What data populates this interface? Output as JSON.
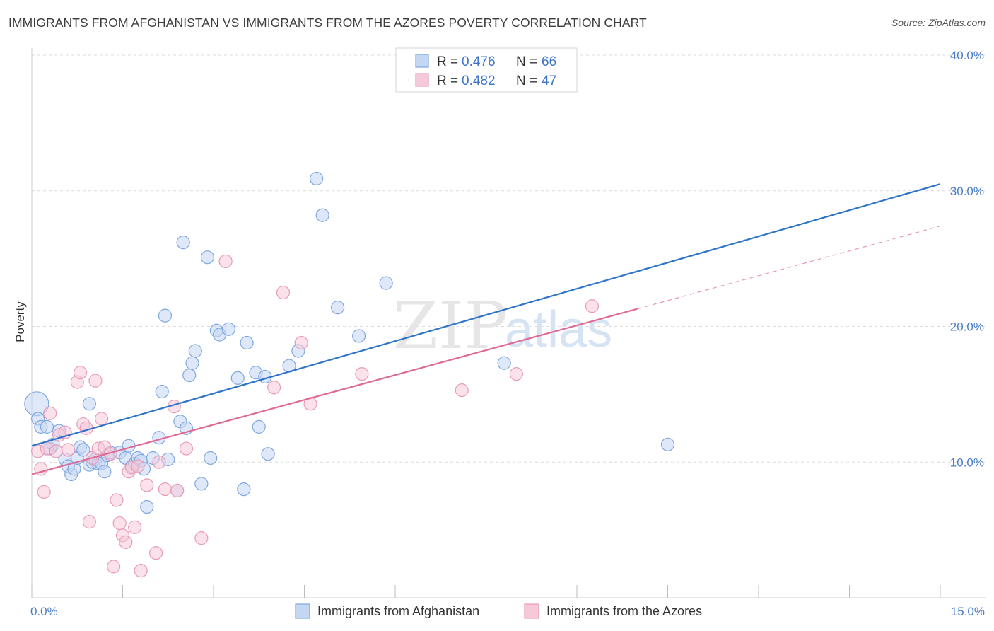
{
  "header": {
    "title": "IMMIGRANTS FROM AFGHANISTAN VS IMMIGRANTS FROM THE AZORES POVERTY CORRELATION CHART",
    "source": "Source: ZipAtlas.com"
  },
  "watermark": {
    "zip": "ZIP",
    "atlas": "atlas"
  },
  "chart_data": {
    "type": "scatter",
    "ylabel": "Poverty",
    "xlim": [
      0,
      15
    ],
    "ylim": [
      0,
      40
    ],
    "x_tick_labels": [
      {
        "value": 0,
        "label": "0.0%"
      },
      {
        "value": 15,
        "label": "15.0%"
      }
    ],
    "y_tick_labels": [
      {
        "value": 10,
        "label": "10.0%"
      },
      {
        "value": 20,
        "label": "20.0%"
      },
      {
        "value": 30,
        "label": "30.0%"
      },
      {
        "value": 40,
        "label": "40.0%"
      }
    ],
    "legend_stats": [
      {
        "r_label": "R = ",
        "r": "0.476",
        "n_label": "N = ",
        "n": "66"
      },
      {
        "r_label": "R = ",
        "r": "0.482",
        "n_label": "N = ",
        "n": "47"
      }
    ],
    "series": [
      {
        "name": "Immigrants from Afghanistan",
        "color": "#7fa8e0",
        "fill": "#c3d6f2",
        "line_color": "#2e74c9",
        "trend": {
          "x": [
            0,
            15
          ],
          "y": [
            11.2,
            30.5
          ]
        },
        "points": [
          [
            0.08,
            14.3
          ],
          [
            0.1,
            13.2
          ],
          [
            0.15,
            12.6
          ],
          [
            0.25,
            12.6
          ],
          [
            0.3,
            11.0
          ],
          [
            0.35,
            11.3
          ],
          [
            0.45,
            12.3
          ],
          [
            0.55,
            10.2
          ],
          [
            0.6,
            9.7
          ],
          [
            0.65,
            9.1
          ],
          [
            0.7,
            9.5
          ],
          [
            0.75,
            10.3
          ],
          [
            0.8,
            11.1
          ],
          [
            0.85,
            10.9
          ],
          [
            0.95,
            9.8
          ],
          [
            1.0,
            10.0
          ],
          [
            1.05,
            10.2
          ],
          [
            1.1,
            9.9
          ],
          [
            1.15,
            9.9
          ],
          [
            1.2,
            9.3
          ],
          [
            1.25,
            10.5
          ],
          [
            1.3,
            10.7
          ],
          [
            1.45,
            10.7
          ],
          [
            1.55,
            10.3
          ],
          [
            1.6,
            11.2
          ],
          [
            1.65,
            9.7
          ],
          [
            1.7,
            9.9
          ],
          [
            1.75,
            10.3
          ],
          [
            1.8,
            10.1
          ],
          [
            1.85,
            9.5
          ],
          [
            1.9,
            6.7
          ],
          [
            2.0,
            10.3
          ],
          [
            2.1,
            11.8
          ],
          [
            2.15,
            15.2
          ],
          [
            2.2,
            20.8
          ],
          [
            2.25,
            10.2
          ],
          [
            2.4,
            7.9
          ],
          [
            2.45,
            13.0
          ],
          [
            2.5,
            26.2
          ],
          [
            2.55,
            12.5
          ],
          [
            2.6,
            16.4
          ],
          [
            2.65,
            17.3
          ],
          [
            2.7,
            18.2
          ],
          [
            2.8,
            8.4
          ],
          [
            2.9,
            25.1
          ],
          [
            2.95,
            10.3
          ],
          [
            3.05,
            19.7
          ],
          [
            3.1,
            19.4
          ],
          [
            3.25,
            19.8
          ],
          [
            3.4,
            16.2
          ],
          [
            3.5,
            8.0
          ],
          [
            3.55,
            18.8
          ],
          [
            3.7,
            16.6
          ],
          [
            3.75,
            12.6
          ],
          [
            3.85,
            16.3
          ],
          [
            3.9,
            10.6
          ],
          [
            4.25,
            17.1
          ],
          [
            4.4,
            18.2
          ],
          [
            4.7,
            30.9
          ],
          [
            4.8,
            28.2
          ],
          [
            5.05,
            21.4
          ],
          [
            5.4,
            19.3
          ],
          [
            5.85,
            23.2
          ],
          [
            7.8,
            17.3
          ],
          [
            10.5,
            11.3
          ],
          [
            0.95,
            14.3
          ]
        ]
      },
      {
        "name": "Immigrants from the Azores",
        "color": "#e89bb6",
        "fill": "#f6c9d8",
        "line_color": "#e06a95",
        "trend": {
          "x": [
            0,
            10
          ],
          "y": [
            9.1,
            21.3
          ]
        },
        "trend_ext": {
          "x": [
            10,
            15
          ],
          "y": [
            21.3,
            27.4
          ]
        },
        "points": [
          [
            0.1,
            10.8
          ],
          [
            0.15,
            9.5
          ],
          [
            0.2,
            7.8
          ],
          [
            0.25,
            11.0
          ],
          [
            0.3,
            13.6
          ],
          [
            0.4,
            10.8
          ],
          [
            0.45,
            12.0
          ],
          [
            0.55,
            12.2
          ],
          [
            0.6,
            10.9
          ],
          [
            0.75,
            15.9
          ],
          [
            0.8,
            16.6
          ],
          [
            0.85,
            12.8
          ],
          [
            0.9,
            12.5
          ],
          [
            0.95,
            5.6
          ],
          [
            1.0,
            10.3
          ],
          [
            1.05,
            16.0
          ],
          [
            1.1,
            11.0
          ],
          [
            1.15,
            13.2
          ],
          [
            1.2,
            11.1
          ],
          [
            1.3,
            10.6
          ],
          [
            1.35,
            2.3
          ],
          [
            1.4,
            7.2
          ],
          [
            1.45,
            5.5
          ],
          [
            1.5,
            4.6
          ],
          [
            1.55,
            4.1
          ],
          [
            1.6,
            9.3
          ],
          [
            1.65,
            9.6
          ],
          [
            1.7,
            5.2
          ],
          [
            1.75,
            9.7
          ],
          [
            1.8,
            2.0
          ],
          [
            1.9,
            8.3
          ],
          [
            2.05,
            3.3
          ],
          [
            2.1,
            10.0
          ],
          [
            2.2,
            8.0
          ],
          [
            2.35,
            14.1
          ],
          [
            2.4,
            7.9
          ],
          [
            2.55,
            11.0
          ],
          [
            2.8,
            4.4
          ],
          [
            3.2,
            24.8
          ],
          [
            4.0,
            15.5
          ],
          [
            4.15,
            22.5
          ],
          [
            4.45,
            18.8
          ],
          [
            4.6,
            14.3
          ],
          [
            5.45,
            16.5
          ],
          [
            7.1,
            15.3
          ],
          [
            8.0,
            16.5
          ],
          [
            9.25,
            21.5
          ]
        ]
      }
    ]
  }
}
